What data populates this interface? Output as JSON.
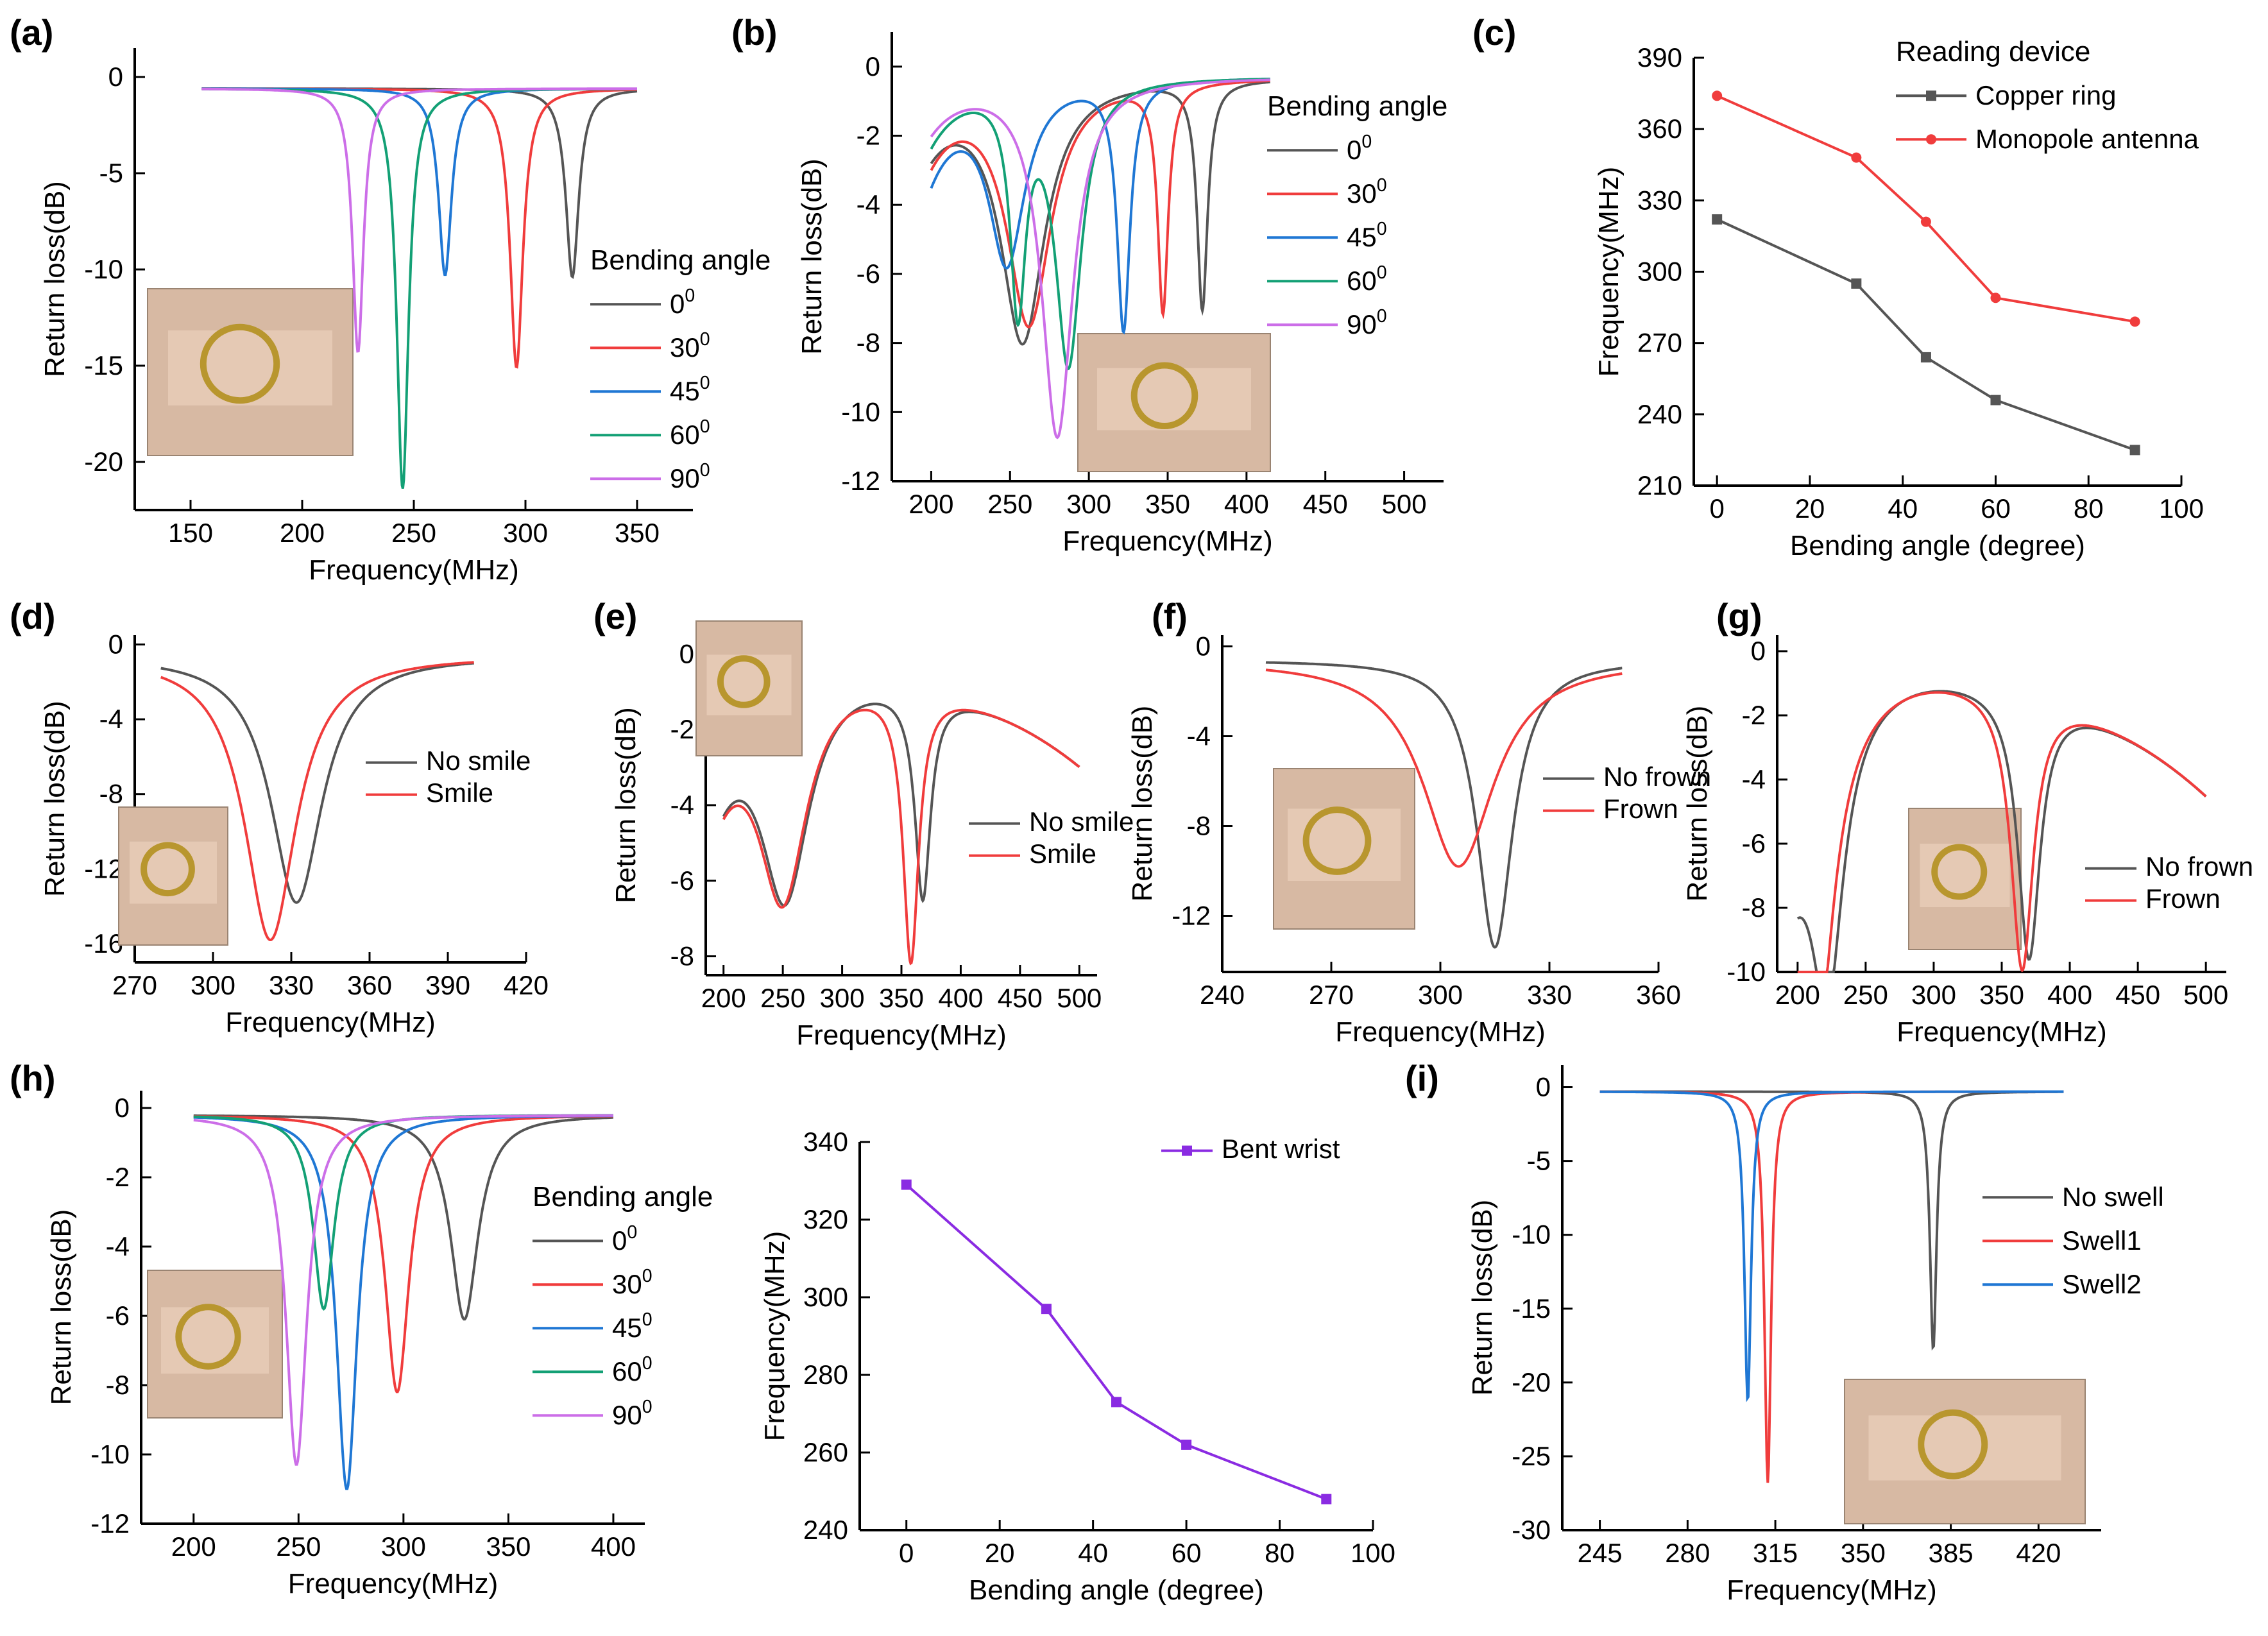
{
  "figure_title": "",
  "chart_data": [
    {
      "id": "a",
      "panel_label": "(a)",
      "type": "line",
      "xlabel": "Frequency(MHz)",
      "ylabel": "Return loss(dB)",
      "xlim": [
        125,
        375
      ],
      "ylim": [
        -22.5,
        1.5
      ],
      "xticks": [
        150,
        200,
        250,
        300,
        350
      ],
      "yticks": [
        0,
        -5,
        -10,
        -15,
        -20
      ],
      "xrange": [
        155,
        350
      ],
      "base": -0.6,
      "legend_title": "Bending angle",
      "legend_position": "center-right",
      "photo_caption": "inset photo: copper ring on finger",
      "series": [
        {
          "name": "0",
          "sup": "0",
          "color": "#555555",
          "dips": [
            {
              "f0": 321,
              "depth": -9.8,
              "w": 3.5
            }
          ]
        },
        {
          "name": "30",
          "sup": "0",
          "color": "#f03c3c",
          "dips": [
            {
              "f0": 296,
              "depth": -14.5,
              "w": 3.5
            }
          ]
        },
        {
          "name": "45",
          "sup": "0",
          "color": "#1f77d4",
          "dips": [
            {
              "f0": 264,
              "depth": -9.7,
              "w": 3.5
            }
          ]
        },
        {
          "name": "60",
          "sup": "0",
          "color": "#13a075",
          "dips": [
            {
              "f0": 245,
              "depth": -20.8,
              "w": 3.2
            }
          ]
        },
        {
          "name": "90",
          "sup": "0",
          "color": "#cc6ee8",
          "dips": [
            {
              "f0": 225,
              "depth": -13.7,
              "w": 3.0
            }
          ]
        }
      ]
    },
    {
      "id": "b",
      "panel_label": "(b)",
      "type": "line",
      "xlabel": "Frequency(MHz)",
      "ylabel": "Return loss(dB)",
      "xlim": [
        175,
        525
      ],
      "ylim": [
        -12,
        1
      ],
      "xticks": [
        200,
        250,
        300,
        350,
        400,
        450,
        500
      ],
      "yticks": [
        0,
        -2,
        -4,
        -6,
        -8,
        -10,
        -12
      ],
      "xrange": [
        200,
        415
      ],
      "base": -0.3,
      "legend_title": "Bending angle",
      "legend_position": "top-right",
      "photo_caption": "inset photo: monopole antenna on hand",
      "series": [
        {
          "name": "0",
          "sup": "0",
          "color": "#555555",
          "dips": [
            {
              "f0": 258,
              "depth": -7.6,
              "w": 17
            },
            {
              "f0": 372,
              "depth": -6.6,
              "w": 4
            }
          ],
          "start": -2.2
        },
        {
          "name": "30",
          "sup": "0",
          "color": "#f03c3c",
          "dips": [
            {
              "f0": 262,
              "depth": -7.1,
              "w": 17
            },
            {
              "f0": 347,
              "depth": -6.6,
              "w": 4
            }
          ],
          "start": -2.5
        },
        {
          "name": "45",
          "sup": "0",
          "color": "#1f77d4",
          "dips": [
            {
              "f0": 248,
              "depth": -5.2,
              "w": 14
            },
            {
              "f0": 322,
              "depth": -7.2,
              "w": 5
            }
          ],
          "start": -3.1
        },
        {
          "name": "60",
          "sup": "0",
          "color": "#13a075",
          "dips": [
            {
              "f0": 255,
              "depth": -6.3,
              "w": 6
            },
            {
              "f0": 287,
              "depth": -8.2,
              "w": 10
            }
          ],
          "start": -2.2
        },
        {
          "name": "90",
          "sup": "0",
          "color": "#cc6ee8",
          "dips": [
            {
              "f0": 280,
              "depth": -10.4,
              "w": 12
            }
          ],
          "start": -1.8
        }
      ]
    },
    {
      "id": "c",
      "panel_label": "(c)",
      "type": "line",
      "xlabel": "Bending angle (degree)",
      "ylabel": "Frequency(MHz)",
      "xlim": [
        -5,
        100
      ],
      "ylim": [
        210,
        390
      ],
      "xticks": [
        0,
        20,
        40,
        60,
        80,
        100
      ],
      "yticks": [
        210,
        240,
        270,
        300,
        330,
        360,
        390
      ],
      "legend_title": "Reading device",
      "legend_position": "top-right",
      "x": [
        0,
        30,
        45,
        60,
        90
      ],
      "series": [
        {
          "name": "Copper ring",
          "color": "#555555",
          "marker": "square",
          "values": [
            322,
            295,
            264,
            246,
            225
          ]
        },
        {
          "name": "Monopole antenna",
          "color": "#f03c3c",
          "marker": "circle",
          "values": [
            374,
            348,
            321,
            289,
            279
          ]
        }
      ]
    },
    {
      "id": "d",
      "panel_label": "(d)",
      "type": "line",
      "xlabel": "Frequency(MHz)",
      "ylabel": "Return loss(dB)",
      "xlim": [
        270,
        420
      ],
      "ylim": [
        -17,
        0.5
      ],
      "xticks": [
        270,
        300,
        330,
        360,
        390,
        420
      ],
      "yticks": [
        0,
        -4,
        -8,
        -12,
        -16
      ],
      "xrange": [
        280,
        400
      ],
      "base": -0.6,
      "legend_position": "center-right",
      "photo_caption": "inset photo: sensor at mouth corner",
      "series": [
        {
          "name": "No smile",
          "color": "#555555",
          "dips": [
            {
              "f0": 332,
              "depth": -13.2,
              "w": 12
            }
          ]
        },
        {
          "name": "Smile",
          "color": "#f03c3c",
          "dips": [
            {
              "f0": 322,
              "depth": -15.2,
              "w": 12
            }
          ]
        }
      ]
    },
    {
      "id": "e",
      "panel_label": "(e)",
      "type": "line",
      "xlabel": "Frequency(MHz)",
      "ylabel": "Return loss(dB)",
      "xlim": [
        185,
        515
      ],
      "ylim": [
        -8.5,
        0.5
      ],
      "xticks": [
        200,
        250,
        300,
        350,
        400,
        450,
        500
      ],
      "yticks": [
        0,
        -2,
        -4,
        -6,
        -8
      ],
      "xrange": [
        200,
        500
      ],
      "base": -0.3,
      "legend_position": "center-right",
      "photo_caption": "inset photo: antenna patch on cheek",
      "series": [
        {
          "name": "No smile",
          "color": "#555555",
          "dips": [
            {
              "f0": 252,
              "depth": -5.8,
              "w": 25
            },
            {
              "f0": 368,
              "depth": -5.5,
              "w": 8
            }
          ],
          "start": -3.2,
          "tail": -3.2
        },
        {
          "name": "Smile",
          "color": "#f03c3c",
          "dips": [
            {
              "f0": 250,
              "depth": -5.8,
              "w": 25
            },
            {
              "f0": 358,
              "depth": -7.2,
              "w": 8
            }
          ],
          "start": -3.2,
          "tail": -3.2
        }
      ]
    },
    {
      "id": "f",
      "panel_label": "(f)",
      "type": "line",
      "xlabel": "Frequency(MHz)",
      "ylabel": "Return loss(dB)",
      "xlim": [
        240,
        360
      ],
      "ylim": [
        -14.5,
        0.5
      ],
      "xticks": [
        240,
        270,
        300,
        330,
        360
      ],
      "yticks": [
        0,
        -4,
        -8,
        -12
      ],
      "xrange": [
        252,
        350
      ],
      "base": -0.6,
      "legend_position": "center-right",
      "photo_caption": "inset photo: copper ring on forehead",
      "series": [
        {
          "name": "No frown",
          "color": "#555555",
          "dips": [
            {
              "f0": 315,
              "depth": -12.8,
              "w": 6
            }
          ]
        },
        {
          "name": "Frown",
          "color": "#f03c3c",
          "dips": [
            {
              "f0": 305,
              "depth": -9.2,
              "w": 12
            }
          ]
        }
      ]
    },
    {
      "id": "g",
      "panel_label": "(g)",
      "type": "line",
      "xlabel": "Frequency(MHz)",
      "ylabel": "Return loss(dB)",
      "xlim": [
        185,
        515
      ],
      "ylim": [
        -10,
        0.5
      ],
      "xticks": [
        200,
        250,
        300,
        350,
        400,
        450,
        500
      ],
      "yticks": [
        0,
        -2,
        -4,
        -6,
        -8,
        -10
      ],
      "xrange": [
        200,
        500
      ],
      "base": -0.5,
      "legend_position": "center-right",
      "photo_caption": "inset photo: monopole antenna near face",
      "series": [
        {
          "name": "No frown",
          "color": "#555555",
          "dips": [
            {
              "f0": 222,
              "depth": -8.0,
              "w": 14
            },
            {
              "f0": 370,
              "depth": -8.3,
              "w": 10
            }
          ],
          "start": -6.0,
          "tail": -4.9
        },
        {
          "name": "Frown",
          "color": "#f03c3c",
          "dips": [
            {
              "f0": 215,
              "depth": -7.7,
              "w": 14
            },
            {
              "f0": 365,
              "depth": -8.7,
              "w": 10
            }
          ],
          "start": -7.2,
          "tail": -4.9
        }
      ]
    },
    {
      "id": "h",
      "panel_label": "(h)",
      "type": "line",
      "xlabel": "Frequency(MHz)",
      "ylabel": "Return loss(dB)",
      "xlim": [
        175,
        415
      ],
      "ylim": [
        -12,
        0.5
      ],
      "xticks": [
        200,
        250,
        300,
        350,
        400
      ],
      "yticks": [
        0,
        -2,
        -4,
        -6,
        -8,
        -10,
        -12
      ],
      "xrange": [
        200,
        400
      ],
      "base": -0.2,
      "legend_title": "Bending angle",
      "legend_position": "center-right",
      "photo_caption": "inset photo: copper ring on wrist",
      "series": [
        {
          "name": "0",
          "sup": "0",
          "color": "#555555",
          "dips": [
            {
              "f0": 329,
              "depth": -5.9,
              "w": 8
            }
          ]
        },
        {
          "name": "30",
          "sup": "0",
          "color": "#f03c3c",
          "dips": [
            {
              "f0": 297,
              "depth": -8.0,
              "w": 7
            }
          ]
        },
        {
          "name": "45",
          "sup": "0",
          "color": "#1f77d4",
          "dips": [
            {
              "f0": 273,
              "depth": -10.8,
              "w": 6
            }
          ]
        },
        {
          "name": "60",
          "sup": "0",
          "color": "#13a075",
          "dips": [
            {
              "f0": 262,
              "depth": -5.6,
              "w": 6
            }
          ]
        },
        {
          "name": "90",
          "sup": "0",
          "color": "#cc6ee8",
          "dips": [
            {
              "f0": 249,
              "depth": -10.1,
              "w": 6
            }
          ]
        }
      ]
    },
    {
      "id": "h2",
      "panel_label": "",
      "type": "line",
      "xlabel": "Bending angle (degree)",
      "ylabel": "Frequency(MHz)",
      "xlim": [
        -10,
        100
      ],
      "ylim": [
        240,
        340
      ],
      "xticks": [
        0,
        20,
        40,
        60,
        80,
        100
      ],
      "yticks": [
        240,
        260,
        280,
        300,
        320,
        340
      ],
      "legend_position": "top-right",
      "x": [
        0,
        30,
        45,
        60,
        90
      ],
      "series": [
        {
          "name": "Bent wrist",
          "color": "#8a2be2",
          "marker": "square",
          "values": [
            329,
            297,
            273,
            262,
            248
          ]
        }
      ]
    },
    {
      "id": "i",
      "panel_label": "(i)",
      "type": "line",
      "xlabel": "Frequency(MHz)",
      "ylabel": "Return loss(dB)",
      "xlim": [
        230,
        445
      ],
      "ylim": [
        -30,
        1.5
      ],
      "xticks": [
        245,
        280,
        315,
        350,
        385,
        420
      ],
      "yticks": [
        0,
        -5,
        -10,
        -15,
        -20,
        -25,
        -30
      ],
      "xrange": [
        245,
        430
      ],
      "base": -0.3,
      "legend_position": "center-right",
      "photo_caption": "inset photo: copper ring on swollen surface",
      "series": [
        {
          "name": "No swell",
          "color": "#555555",
          "dips": [
            {
              "f0": 378,
              "depth": -17.5,
              "w": 1.6
            }
          ]
        },
        {
          "name": "Swell1",
          "color": "#f03c3c",
          "dips": [
            {
              "f0": 312,
              "depth": -26.5,
              "w": 1.6
            }
          ]
        },
        {
          "name": "Swell2",
          "color": "#1f77d4",
          "dips": [
            {
              "f0": 304,
              "depth": -21.0,
              "w": 1.6
            }
          ]
        }
      ]
    }
  ]
}
